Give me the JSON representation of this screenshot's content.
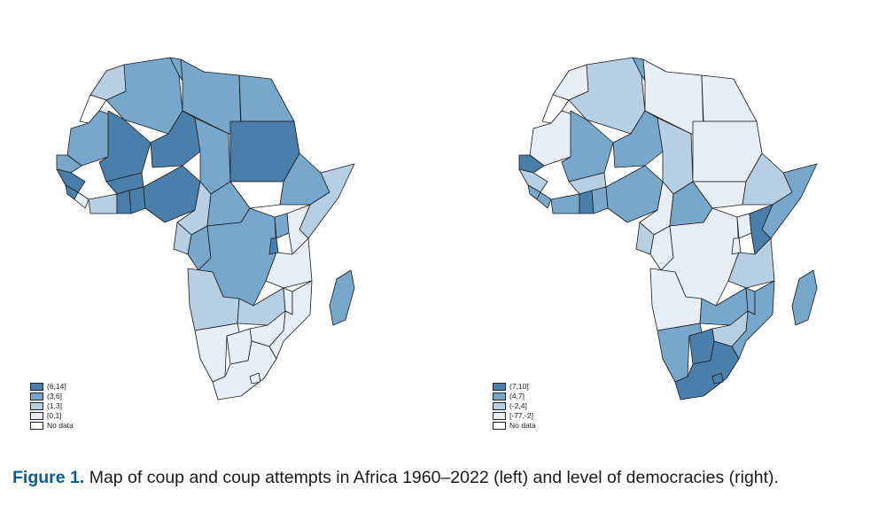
{
  "caption": {
    "label": "Figure 1.",
    "text": "Map of coup and coup attempts in Africa 1960–2022 (left) and level of democracies (right)."
  },
  "maps": [
    {
      "id": "coups",
      "legend": [
        {
          "label": "(6,14]",
          "color": "#4a7fac"
        },
        {
          "label": "(3,6]",
          "color": "#78a7cc"
        },
        {
          "label": "(1,3]",
          "color": "#b7cfe3"
        },
        {
          "label": "[0,1]",
          "color": "#e8eef6"
        },
        {
          "label": "No data",
          "color": "#ffffff"
        }
      ]
    },
    {
      "id": "democracy",
      "legend": [
        {
          "label": "(7,10]",
          "color": "#4a7fac"
        },
        {
          "label": "(4,7]",
          "color": "#78a7cc"
        },
        {
          "label": "(-2,4]",
          "color": "#b7cfe3"
        },
        {
          "label": "[-77,-2]",
          "color": "#e8eef6"
        },
        {
          "label": "No data",
          "color": "#ffffff"
        }
      ]
    }
  ]
}
